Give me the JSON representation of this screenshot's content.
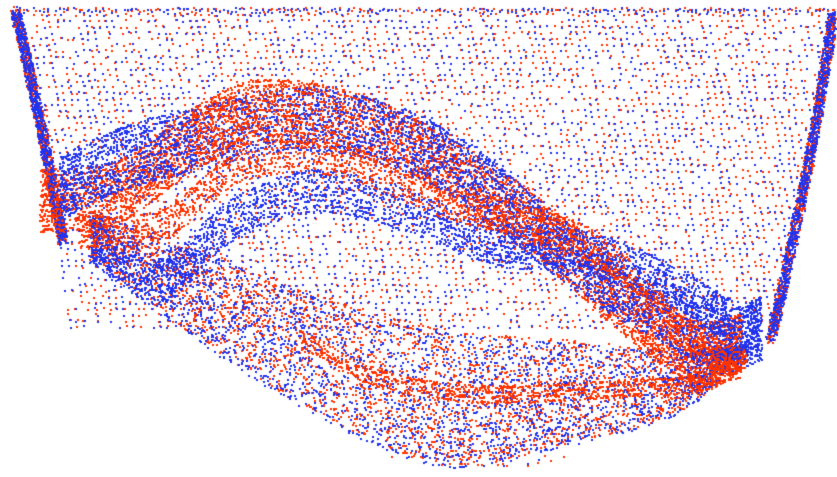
{
  "image": {
    "background": "#ffffff",
    "colors": {
      "red_cloud": "#ff3300",
      "blue_cloud": "#2233ee"
    },
    "layers": [
      {
        "name": "red-point-cloud",
        "color_key": "red_cloud"
      },
      {
        "name": "blue-point-cloud",
        "color_key": "blue_cloud"
      }
    ]
  }
}
